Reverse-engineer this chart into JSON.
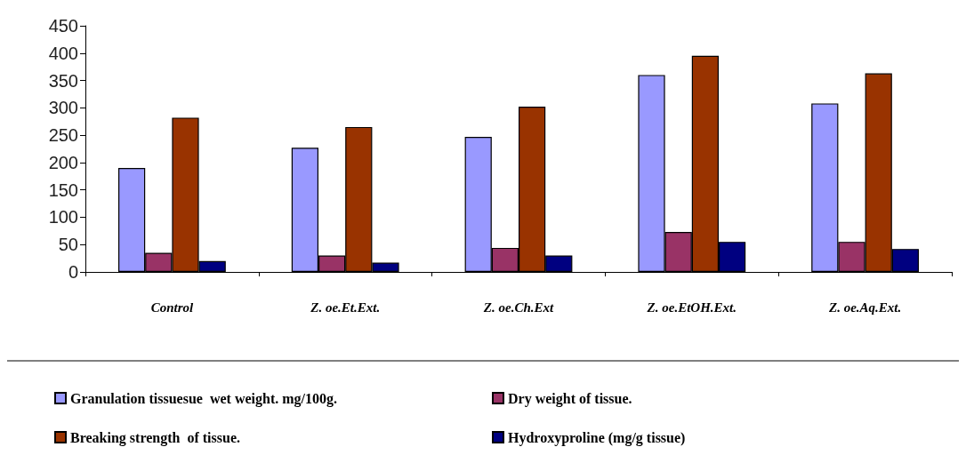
{
  "chart_data": {
    "type": "bar",
    "categories": [
      "Control",
      "Z. oe.Et.Ext.",
      "Z. oe.Ch.Ext",
      "Z. oe.EtOH.Ext.",
      "Z. oe.Aq.Ext."
    ],
    "series": [
      {
        "name": "Granulation tissuesue  wet weight. mg/100g.",
        "color": "#9999ff",
        "values": [
          190,
          227,
          247,
          360,
          308
        ]
      },
      {
        "name": "Dry weight of tissue.",
        "color": "#993366",
        "values": [
          35,
          30,
          44,
          73,
          55
        ]
      },
      {
        "name": "Breaking strength  of tissue.",
        "color": "#993300",
        "values": [
          282,
          265,
          302,
          395,
          363
        ]
      },
      {
        "name": "Hydroxyproline (mg/g tissue)",
        "color": "#000080",
        "values": [
          20,
          17,
          30,
          55,
          42
        ]
      }
    ],
    "ylim": [
      0,
      450
    ],
    "yticks": [
      0,
      50,
      100,
      150,
      200,
      250,
      300,
      350,
      400,
      450
    ],
    "grid": false,
    "legend": "bottom"
  }
}
